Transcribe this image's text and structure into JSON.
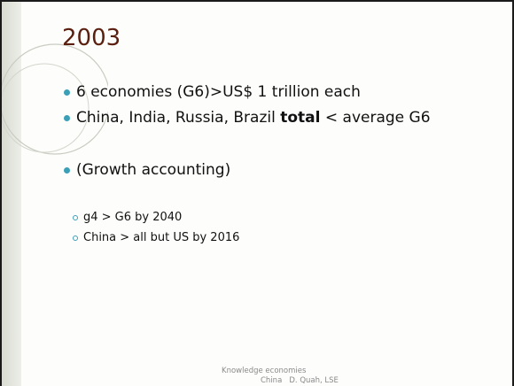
{
  "slide": {
    "title": "2003",
    "bullets": [
      {
        "text": "6 economies (G6)>US$ 1 trillion each"
      },
      {
        "before": "China, India, Russia, Brazil ",
        "bold": "total",
        "after": " < average G6"
      },
      {
        "text": "(Growth accounting)"
      }
    ],
    "sub_bullets": [
      "g4 > G6 by 2040",
      "China > all but US by 2016"
    ],
    "footer": {
      "line1": "Knowledge economies",
      "line2": "China   D. Quah, LSE"
    }
  }
}
